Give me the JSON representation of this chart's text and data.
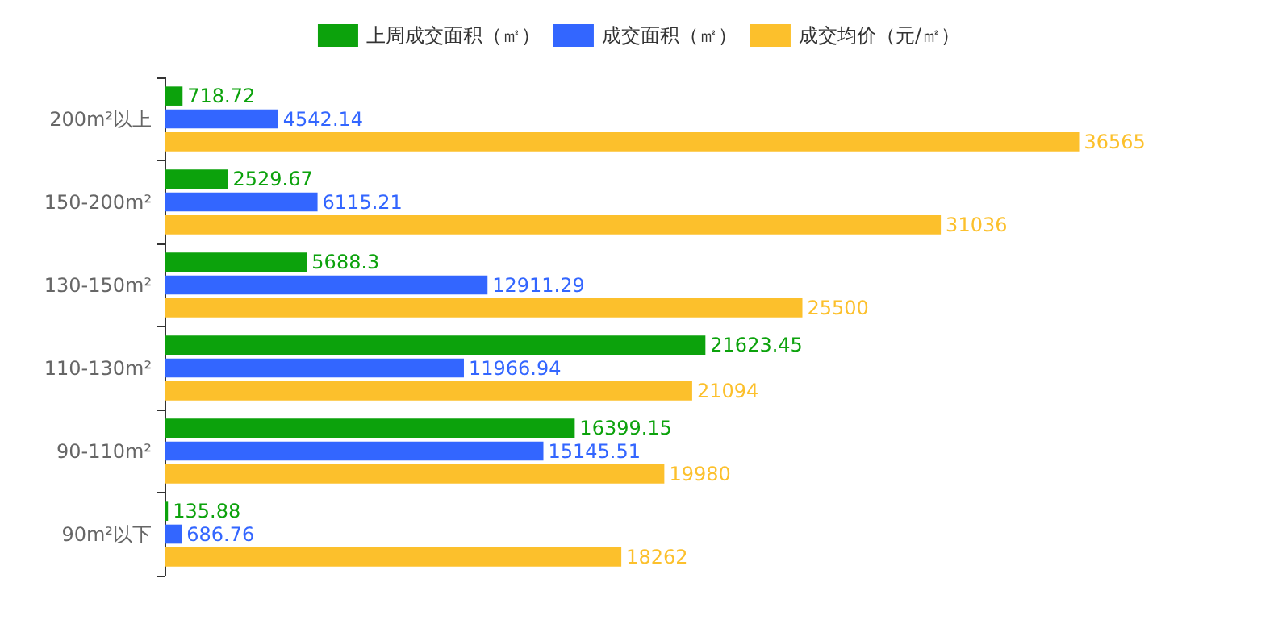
{
  "chart_data": {
    "type": "bar",
    "orientation": "horizontal",
    "categories": [
      "200m²以上",
      "150-200m²",
      "130-150m²",
      "110-130m²",
      "90-110m²",
      "90m²以下"
    ],
    "series": [
      {
        "name": "上周成交面积（㎡）",
        "color": "#0ca20c",
        "values": [
          718.72,
          2529.67,
          5688.3,
          21623.45,
          16399.15,
          135.88
        ]
      },
      {
        "name": "成交面积（㎡）",
        "color": "#3366ff",
        "values": [
          4542.14,
          6115.21,
          12911.29,
          11966.94,
          15145.51,
          686.76
        ]
      },
      {
        "name": "成交均价（元/㎡）",
        "color": "#fcc02c",
        "values": [
          36565,
          31036,
          25500,
          21094,
          19980,
          18262
        ]
      }
    ],
    "data_labels": true,
    "legend": "top",
    "tick_labels": "y"
  }
}
